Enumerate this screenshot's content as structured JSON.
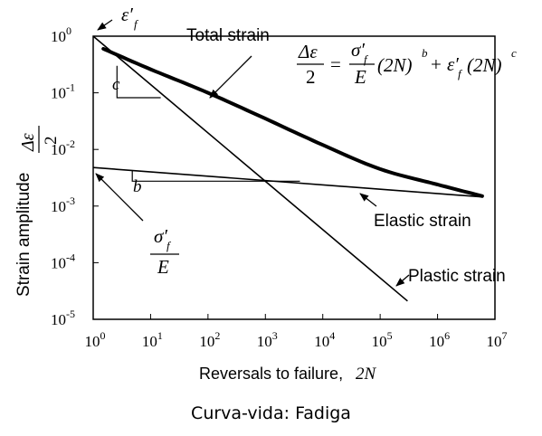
{
  "chart_data": {
    "type": "line",
    "xlabel_text": "Reversals to failure,",
    "xlabel_var": "2N",
    "ylabel_text": "Strain amplitude",
    "ylabel_frac_num": "Δε",
    "ylabel_frac_den": "2",
    "x_scale": "log",
    "y_scale": "log",
    "xlim": [
      1,
      10000000
    ],
    "ylim": [
      1e-05,
      1
    ],
    "grid": false,
    "x_ticks": [
      {
        "value": 1,
        "base": "10",
        "exp": "0"
      },
      {
        "value": 10,
        "base": "10",
        "exp": "1"
      },
      {
        "value": 100,
        "base": "10",
        "exp": "2"
      },
      {
        "value": 1000,
        "base": "10",
        "exp": "3"
      },
      {
        "value": 10000,
        "base": "10",
        "exp": "4"
      },
      {
        "value": 100000,
        "base": "10",
        "exp": "5"
      },
      {
        "value": 1000000,
        "base": "10",
        "exp": "6"
      },
      {
        "value": 10000000,
        "base": "10",
        "exp": "7"
      }
    ],
    "y_ticks": [
      {
        "value": 1,
        "base": "10",
        "exp": "0"
      },
      {
        "value": 0.1,
        "base": "10",
        "exp": "-1"
      },
      {
        "value": 0.01,
        "base": "10",
        "exp": "-2"
      },
      {
        "value": 0.001,
        "base": "10",
        "exp": "-3"
      },
      {
        "value": 0.0001,
        "base": "10",
        "exp": "-4"
      },
      {
        "value": 1e-05,
        "base": "10",
        "exp": "-5"
      }
    ],
    "series": [
      {
        "name": "Total strain",
        "points": [
          [
            1.5,
            0.6
          ],
          [
            10,
            0.26
          ],
          [
            100,
            0.1
          ],
          [
            1000,
            0.035
          ],
          [
            10000,
            0.012
          ],
          [
            100000,
            0.0045
          ],
          [
            1000000,
            0.0024
          ],
          [
            6000000,
            0.0015
          ]
        ]
      },
      {
        "name": "Elastic strain",
        "points": [
          [
            1,
            0.0048
          ],
          [
            6000000,
            0.00145
          ]
        ]
      },
      {
        "name": "Plastic strain",
        "points": [
          [
            1,
            1
          ],
          [
            300000,
            2.1e-05
          ]
        ]
      }
    ],
    "slope_triangles": [
      {
        "label": "c",
        "points": [
          [
            2.6,
            0.3
          ],
          [
            2.6,
            0.082
          ],
          [
            15,
            0.082
          ]
        ]
      },
      {
        "label": "b",
        "points": [
          [
            4.8,
            0.0043
          ],
          [
            4.8,
            0.00275
          ],
          [
            4000,
            0.00275
          ]
        ]
      }
    ],
    "annotations": {
      "total": "Total strain",
      "elastic": "Elastic strain",
      "plastic": "Plastic strain",
      "epsf_symbol": "ε′",
      "epsf_sub": "f",
      "sigf_symbol": "σ′",
      "sigf_sub": "f",
      "E": "E",
      "equation": {
        "lhs_num": "Δε",
        "lhs_den": "2",
        "eq": "=",
        "rhs_num": "σ′",
        "rhs_num_sub": "f",
        "rhs_den": "E",
        "term1": "(2N)",
        "exp1": "b",
        "plus": "+",
        "eps": "ε′",
        "eps_sub": "f",
        "term2": "(2N)",
        "exp2": "c"
      }
    }
  },
  "caption": "Curva-vida: Fadiga"
}
